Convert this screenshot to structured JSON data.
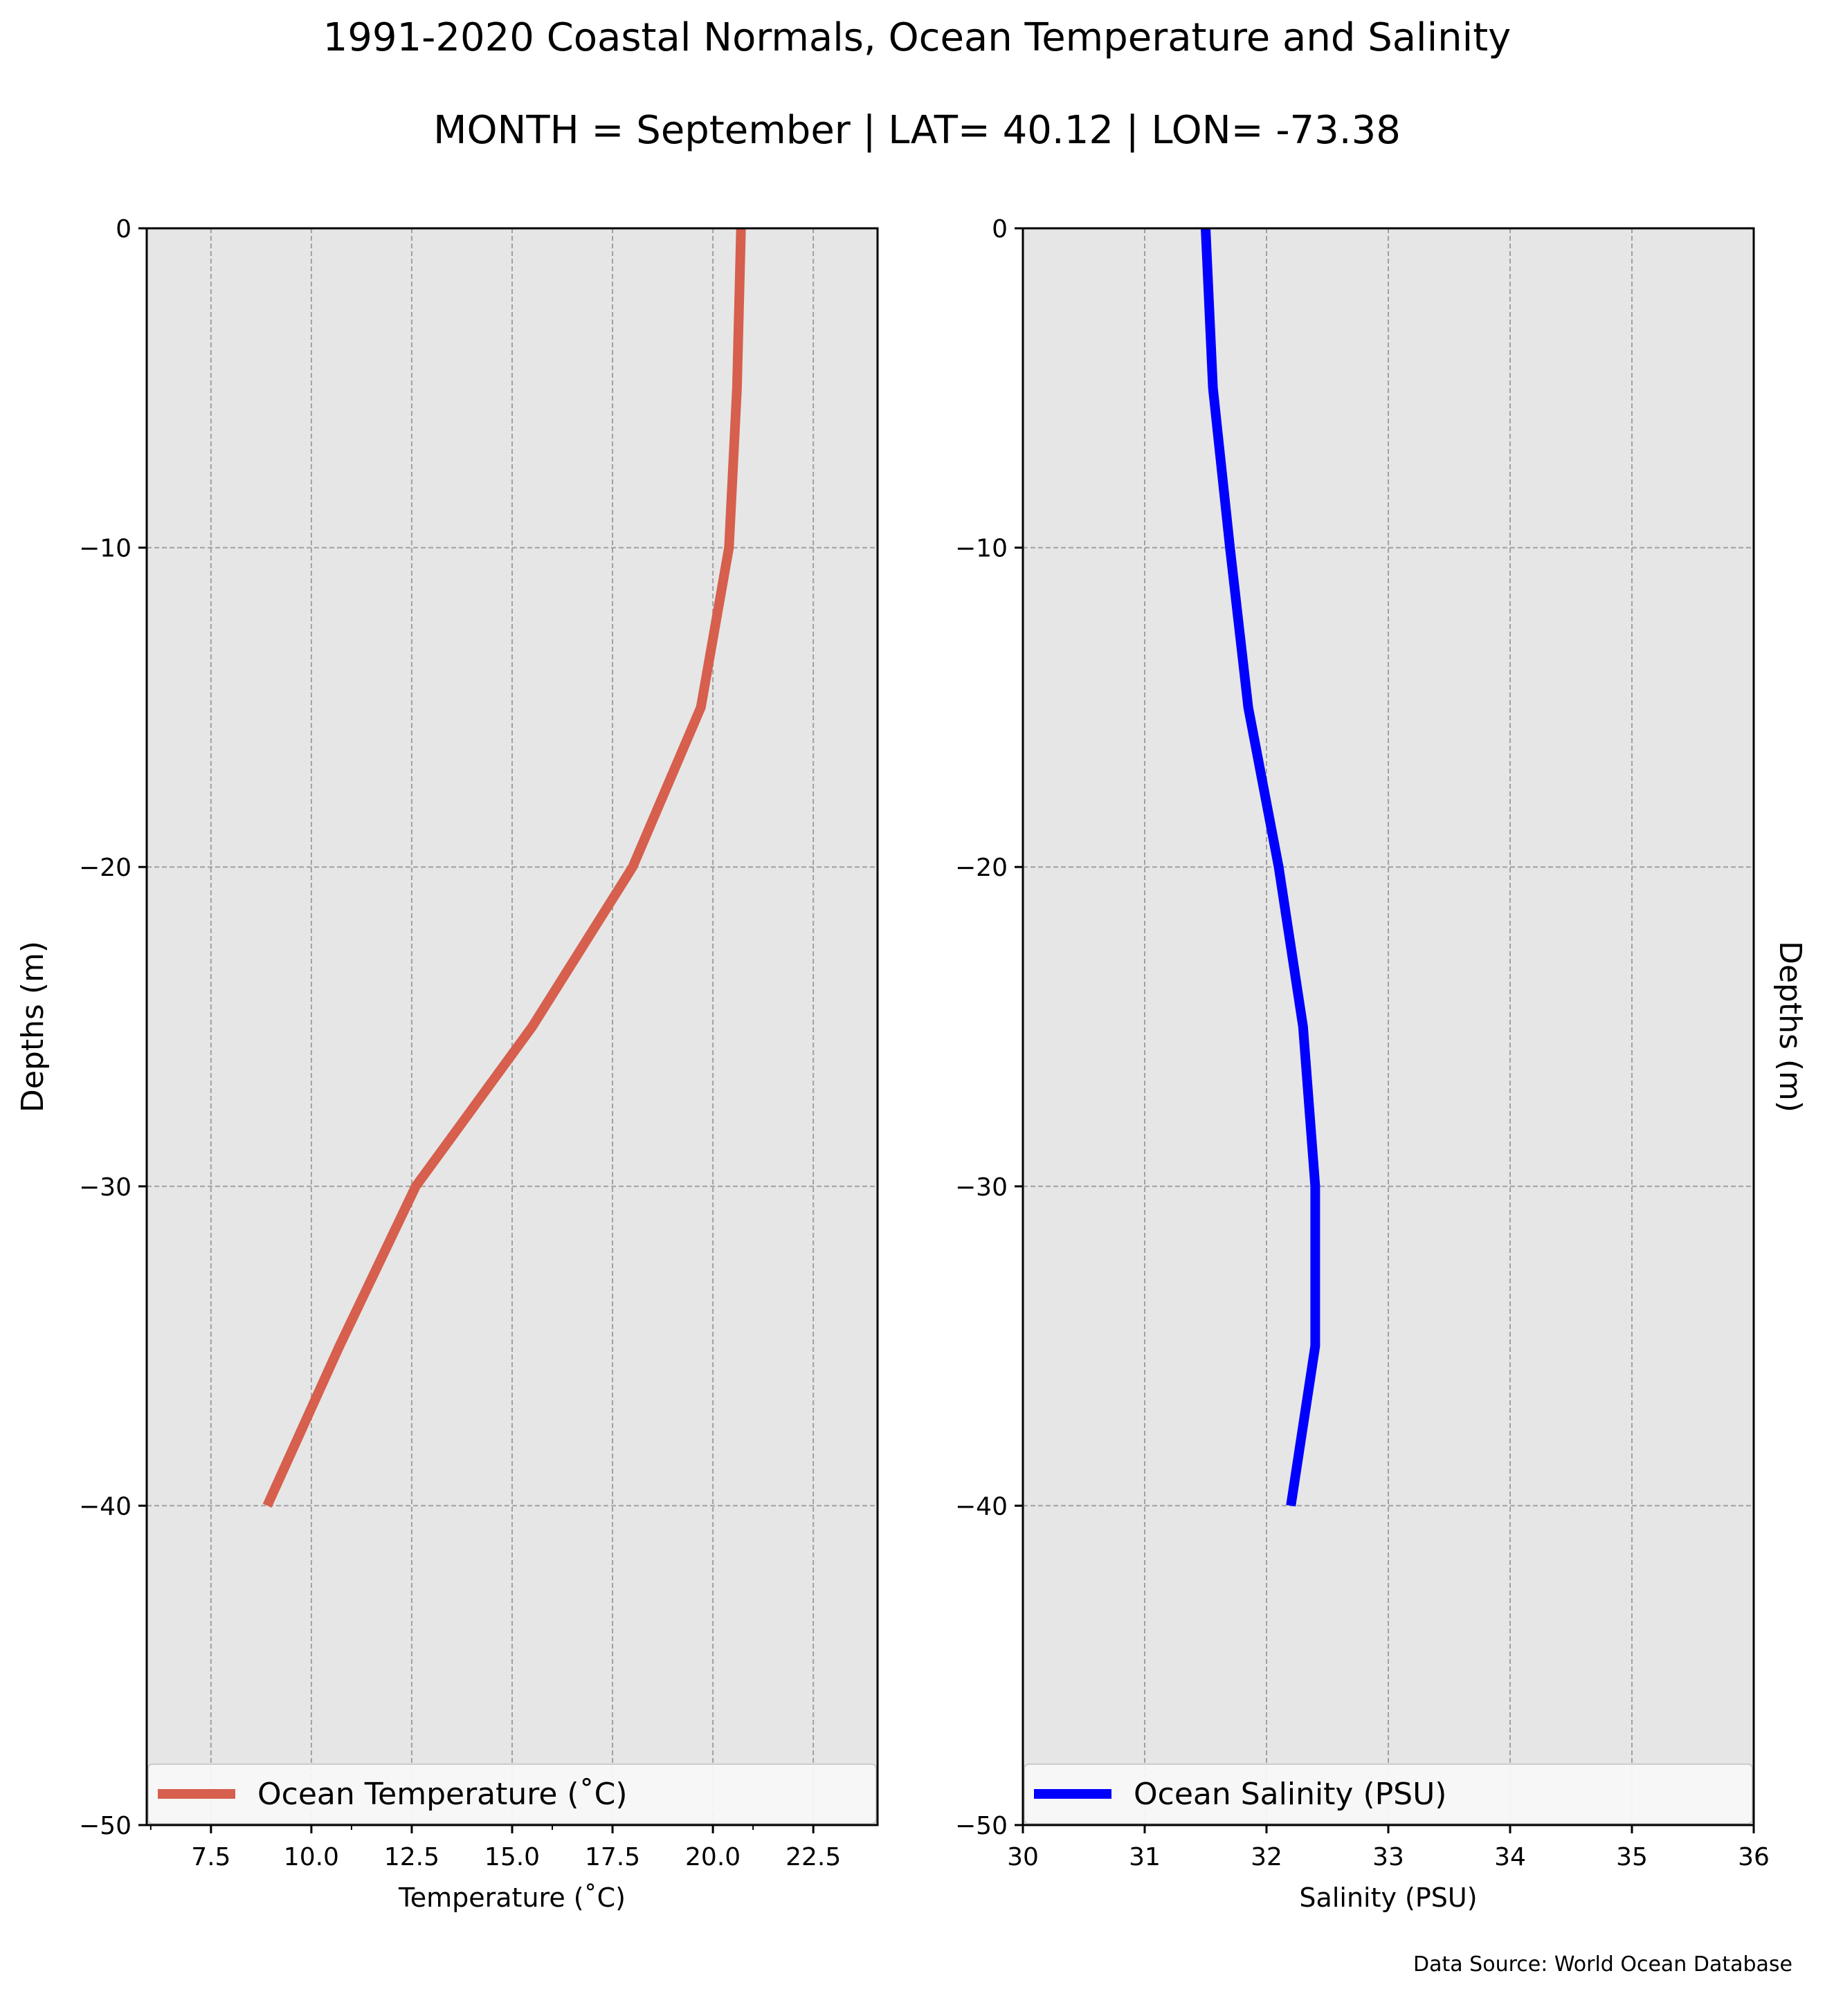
{
  "figure": {
    "title_line1": "1991-2020 Coastal Normals, Ocean Temperature and Salinity",
    "title_line2": "MONTH = September | LAT= 40.12 | LON= -73.38",
    "source_note": "Data Source: World Ocean Database"
  },
  "chart_data": [
    {
      "type": "line",
      "title": "",
      "xlabel": "Temperature (˚C)",
      "ylabel": "Depths (m)",
      "xlim": [
        5.9,
        24.1
      ],
      "ylim": [
        -50,
        0
      ],
      "xticks": [
        7.5,
        10.0,
        12.5,
        15.0,
        17.5,
        20.0,
        22.5
      ],
      "xtick_labels": [
        "7.5",
        "10.0",
        "12.5",
        "15.0",
        "17.5",
        "20.0",
        "22.5"
      ],
      "yticks": [
        0,
        -10,
        -20,
        -30,
        -40,
        -50
      ],
      "ytick_labels": [
        "0",
        "−10",
        "−20",
        "−30",
        "−40",
        "−50"
      ],
      "grid": true,
      "legend_position": "bottom",
      "series": [
        {
          "name": "Ocean Temperature (˚C)",
          "color": "#d65f4d",
          "x": [
            20.7,
            20.6,
            20.4,
            19.7,
            18.0,
            15.5,
            12.6,
            10.7,
            8.9
          ],
          "y": [
            0,
            -5,
            -10,
            -15,
            -20,
            -25,
            -30,
            -35,
            -40
          ]
        }
      ]
    },
    {
      "type": "line",
      "title": "",
      "xlabel": "Salinity (PSU)",
      "ylabel": "Depths (m)",
      "xlim": [
        30,
        36
      ],
      "ylim": [
        -50,
        0
      ],
      "xticks": [
        30,
        31,
        32,
        33,
        34,
        35,
        36
      ],
      "xtick_labels": [
        "30",
        "31",
        "32",
        "33",
        "34",
        "35",
        "36"
      ],
      "yticks": [
        0,
        -10,
        -20,
        -30,
        -40,
        -50
      ],
      "ytick_labels": [
        "0",
        "−10",
        "−20",
        "−30",
        "−40",
        "−50"
      ],
      "grid": true,
      "legend_position": "bottom",
      "series": [
        {
          "name": "Ocean Salinity (PSU)",
          "color": "#0000ff",
          "x": [
            31.5,
            31.56,
            31.7,
            31.85,
            32.1,
            32.3,
            32.4,
            32.4,
            32.2
          ],
          "y": [
            0,
            -5,
            -10,
            -15,
            -20,
            -25,
            -30,
            -35,
            -40
          ]
        }
      ]
    }
  ]
}
